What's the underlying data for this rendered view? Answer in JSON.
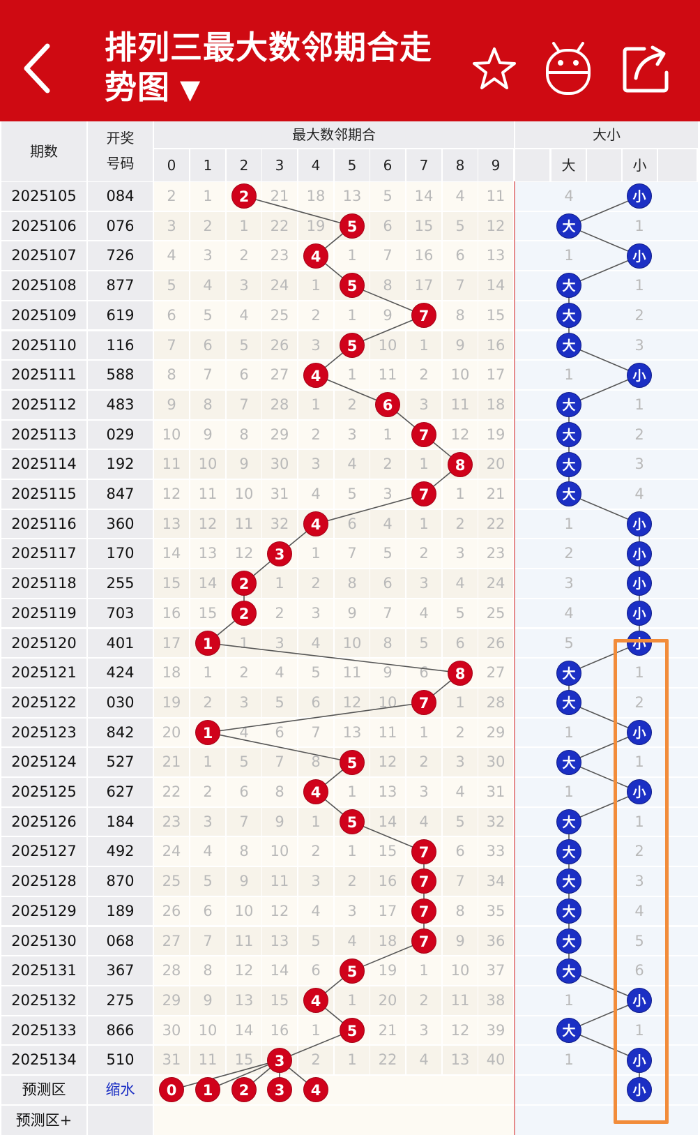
{
  "header": {
    "back_icon": "chevron-left-icon",
    "title_line1": "排列三最大数邻期合走",
    "title_line2": "势图",
    "dropdown_arrow": "▼",
    "favorite_icon": "star-icon",
    "robot_icon": "robot-icon",
    "share_icon": "share-icon"
  },
  "columns": {
    "period": "期数",
    "draw_line1": "开奖",
    "draw_line2": "号码",
    "group_main": "最大数邻期合",
    "group_size": "大小",
    "digits": [
      "0",
      "1",
      "2",
      "3",
      "4",
      "5",
      "6",
      "7",
      "8",
      "9"
    ],
    "big": "大",
    "small": "小"
  },
  "rows": [
    {
      "period": "2025105",
      "draw": "084",
      "values": [
        "2",
        "1",
        "2",
        "21",
        "18",
        "13",
        "5",
        "14",
        "4",
        "11"
      ],
      "hit": 2,
      "big": "4",
      "small": "小",
      "size": "small"
    },
    {
      "period": "2025106",
      "draw": "076",
      "values": [
        "3",
        "2",
        "1",
        "22",
        "19",
        "5",
        "6",
        "15",
        "5",
        "12"
      ],
      "hit": 5,
      "big": "大",
      "small": "1",
      "size": "big"
    },
    {
      "period": "2025107",
      "draw": "726",
      "values": [
        "4",
        "3",
        "2",
        "23",
        "4",
        "1",
        "7",
        "16",
        "6",
        "13"
      ],
      "hit": 4,
      "big": "1",
      "small": "小",
      "size": "small"
    },
    {
      "period": "2025108",
      "draw": "877",
      "values": [
        "5",
        "4",
        "3",
        "24",
        "1",
        "5",
        "8",
        "17",
        "7",
        "14"
      ],
      "hit": 5,
      "big": "大",
      "small": "1",
      "size": "big"
    },
    {
      "period": "2025109",
      "draw": "619",
      "values": [
        "6",
        "5",
        "4",
        "25",
        "2",
        "1",
        "9",
        "7",
        "8",
        "15"
      ],
      "hit": 7,
      "big": "大",
      "small": "2",
      "size": "big"
    },
    {
      "period": "2025110",
      "draw": "116",
      "values": [
        "7",
        "6",
        "5",
        "26",
        "3",
        "5",
        "10",
        "1",
        "9",
        "16"
      ],
      "hit": 5,
      "big": "大",
      "small": "3",
      "size": "big"
    },
    {
      "period": "2025111",
      "draw": "588",
      "values": [
        "8",
        "7",
        "6",
        "27",
        "4",
        "1",
        "11",
        "2",
        "10",
        "17"
      ],
      "hit": 4,
      "big": "1",
      "small": "小",
      "size": "small"
    },
    {
      "period": "2025112",
      "draw": "483",
      "values": [
        "9",
        "8",
        "7",
        "28",
        "1",
        "2",
        "6",
        "3",
        "11",
        "18"
      ],
      "hit": 6,
      "big": "大",
      "small": "1",
      "size": "big"
    },
    {
      "period": "2025113",
      "draw": "029",
      "values": [
        "10",
        "9",
        "8",
        "29",
        "2",
        "3",
        "1",
        "7",
        "12",
        "19"
      ],
      "hit": 7,
      "big": "大",
      "small": "2",
      "size": "big"
    },
    {
      "period": "2025114",
      "draw": "192",
      "values": [
        "11",
        "10",
        "9",
        "30",
        "3",
        "4",
        "2",
        "1",
        "8",
        "20"
      ],
      "hit": 8,
      "big": "大",
      "small": "3",
      "size": "big"
    },
    {
      "period": "2025115",
      "draw": "847",
      "values": [
        "12",
        "11",
        "10",
        "31",
        "4",
        "5",
        "3",
        "7",
        "1",
        "21"
      ],
      "hit": 7,
      "big": "大",
      "small": "4",
      "size": "big"
    },
    {
      "period": "2025116",
      "draw": "360",
      "values": [
        "13",
        "12",
        "11",
        "32",
        "4",
        "6",
        "4",
        "1",
        "2",
        "22"
      ],
      "hit": 4,
      "big": "1",
      "small": "小",
      "size": "small"
    },
    {
      "period": "2025117",
      "draw": "170",
      "values": [
        "14",
        "13",
        "12",
        "3",
        "1",
        "7",
        "5",
        "2",
        "3",
        "23"
      ],
      "hit": 3,
      "big": "2",
      "small": "小",
      "size": "small"
    },
    {
      "period": "2025118",
      "draw": "255",
      "values": [
        "15",
        "14",
        "2",
        "1",
        "2",
        "8",
        "6",
        "3",
        "4",
        "24"
      ],
      "hit": 2,
      "big": "3",
      "small": "小",
      "size": "small"
    },
    {
      "period": "2025119",
      "draw": "703",
      "values": [
        "16",
        "15",
        "2",
        "2",
        "3",
        "9",
        "7",
        "4",
        "5",
        "25"
      ],
      "hit": 2,
      "big": "4",
      "small": "小",
      "size": "small"
    },
    {
      "period": "2025120",
      "draw": "401",
      "values": [
        "17",
        "1",
        "1",
        "3",
        "4",
        "10",
        "8",
        "5",
        "6",
        "26"
      ],
      "hit": 1,
      "big": "5",
      "small": "小",
      "size": "small"
    },
    {
      "period": "2025121",
      "draw": "424",
      "values": [
        "18",
        "1",
        "2",
        "4",
        "5",
        "11",
        "9",
        "6",
        "8",
        "27"
      ],
      "hit": 8,
      "big": "大",
      "small": "1",
      "size": "big"
    },
    {
      "period": "2025122",
      "draw": "030",
      "values": [
        "19",
        "2",
        "3",
        "5",
        "6",
        "12",
        "10",
        "7",
        "1",
        "28"
      ],
      "hit": 7,
      "big": "大",
      "small": "2",
      "size": "big"
    },
    {
      "period": "2025123",
      "draw": "842",
      "values": [
        "20",
        "1",
        "4",
        "6",
        "7",
        "13",
        "11",
        "1",
        "2",
        "29"
      ],
      "hit": 1,
      "big": "1",
      "small": "小",
      "size": "small"
    },
    {
      "period": "2025124",
      "draw": "527",
      "values": [
        "21",
        "1",
        "5",
        "7",
        "8",
        "5",
        "12",
        "2",
        "3",
        "30"
      ],
      "hit": 5,
      "big": "大",
      "small": "1",
      "size": "big"
    },
    {
      "period": "2025125",
      "draw": "627",
      "values": [
        "22",
        "2",
        "6",
        "8",
        "4",
        "1",
        "13",
        "3",
        "4",
        "31"
      ],
      "hit": 4,
      "big": "1",
      "small": "小",
      "size": "small"
    },
    {
      "period": "2025126",
      "draw": "184",
      "values": [
        "23",
        "3",
        "7",
        "9",
        "1",
        "5",
        "14",
        "4",
        "5",
        "32"
      ],
      "hit": 5,
      "big": "大",
      "small": "1",
      "size": "big"
    },
    {
      "period": "2025127",
      "draw": "492",
      "values": [
        "24",
        "4",
        "8",
        "10",
        "2",
        "1",
        "15",
        "7",
        "6",
        "33"
      ],
      "hit": 7,
      "big": "大",
      "small": "2",
      "size": "big"
    },
    {
      "period": "2025128",
      "draw": "870",
      "values": [
        "25",
        "5",
        "9",
        "11",
        "3",
        "2",
        "16",
        "7",
        "7",
        "34"
      ],
      "hit": 7,
      "big": "大",
      "small": "3",
      "size": "big"
    },
    {
      "period": "2025129",
      "draw": "189",
      "values": [
        "26",
        "6",
        "10",
        "12",
        "4",
        "3",
        "17",
        "7",
        "8",
        "35"
      ],
      "hit": 7,
      "big": "大",
      "small": "4",
      "size": "big"
    },
    {
      "period": "2025130",
      "draw": "068",
      "values": [
        "27",
        "7",
        "11",
        "13",
        "5",
        "4",
        "18",
        "7",
        "9",
        "36"
      ],
      "hit": 7,
      "big": "大",
      "small": "5",
      "size": "big"
    },
    {
      "period": "2025131",
      "draw": "367",
      "values": [
        "28",
        "8",
        "12",
        "14",
        "6",
        "5",
        "19",
        "1",
        "10",
        "37"
      ],
      "hit": 5,
      "big": "大",
      "small": "6",
      "size": "big"
    },
    {
      "period": "2025132",
      "draw": "275",
      "values": [
        "29",
        "9",
        "13",
        "15",
        "4",
        "1",
        "20",
        "2",
        "11",
        "38"
      ],
      "hit": 4,
      "big": "1",
      "small": "小",
      "size": "small"
    },
    {
      "period": "2025133",
      "draw": "866",
      "values": [
        "30",
        "10",
        "14",
        "16",
        "1",
        "5",
        "21",
        "3",
        "12",
        "39"
      ],
      "hit": 5,
      "big": "大",
      "small": "1",
      "size": "big"
    },
    {
      "period": "2025134",
      "draw": "510",
      "values": [
        "31",
        "11",
        "15",
        "3",
        "2",
        "1",
        "22",
        "4",
        "13",
        "40"
      ],
      "hit": 3,
      "big": "1",
      "small": "小",
      "size": "small"
    }
  ],
  "forecast": {
    "label": "预测区",
    "shrink": "缩水",
    "balls": [
      "0",
      "1",
      "2",
      "3",
      "4"
    ],
    "small": "小",
    "label2": "预测区+"
  },
  "colors": {
    "header_red": "#cf0a12",
    "ball_red": "#d0021b",
    "ball_blue": "#1b2fc4",
    "highlight_orange": "#f28c3a"
  }
}
